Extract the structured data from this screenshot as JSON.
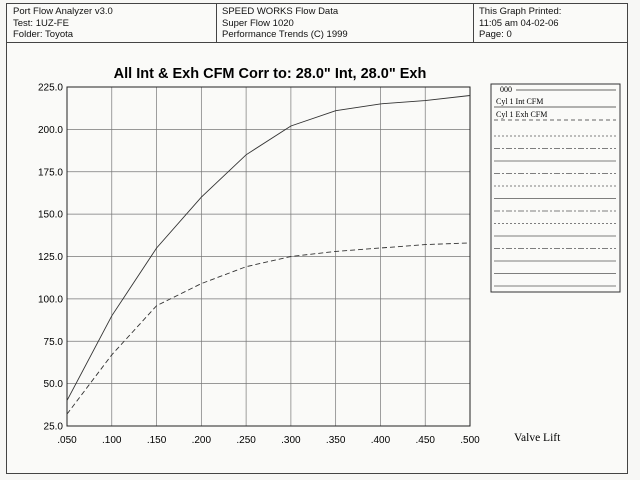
{
  "header": {
    "left": [
      "Port Flow Analyzer v3.0",
      "Test: 1UZ-FE",
      "Folder: Toyota"
    ],
    "center": [
      "SPEED WORKS Flow Data",
      "Super Flow 1020",
      "Performance Trends (C) 1999"
    ],
    "right": [
      "This Graph Printed:",
      "11:05 am 04-02-06",
      "Page: 0"
    ]
  },
  "chart_data": {
    "type": "line",
    "title": "All Int & Exh CFM   Corr to: 28.0\" Int, 28.0\" Exh",
    "xlabel": "Valve Lift",
    "ylabel": "",
    "xlim": [
      0.05,
      0.5
    ],
    "ylim": [
      25,
      225
    ],
    "x_ticks": [
      ".050",
      ".100",
      ".150",
      ".200",
      ".250",
      ".300",
      ".350",
      ".400",
      ".450",
      ".500"
    ],
    "y_ticks": [
      "25.0",
      "50.0",
      "75.0",
      "100.0",
      "125.0",
      "150.0",
      "175.0",
      "200.0",
      "225.0"
    ],
    "grid": true,
    "x": [
      0.05,
      0.1,
      0.15,
      0.2,
      0.25,
      0.3,
      0.35,
      0.4,
      0.45,
      0.5
    ],
    "series": [
      {
        "name": "Cyl 1 Int CFM",
        "style": "solid",
        "values": [
          40,
          90,
          130,
          160,
          185,
          202,
          211,
          215,
          217,
          220
        ]
      },
      {
        "name": "Cyl 1 Exh CFM",
        "style": "dashed",
        "values": [
          32,
          67,
          96,
          109,
          119,
          125,
          128,
          130,
          132,
          133
        ]
      }
    ],
    "legend_header": "000",
    "legend_placement": "right"
  }
}
